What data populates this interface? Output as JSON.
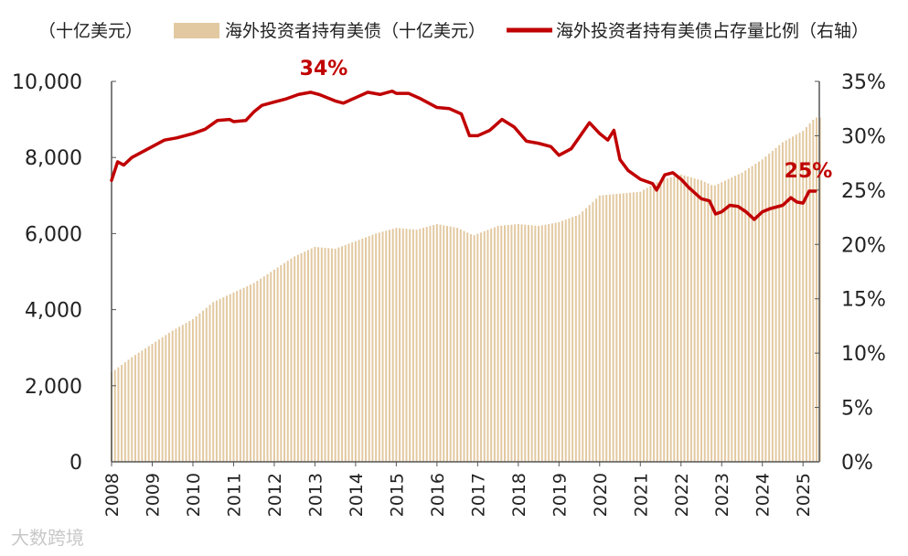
{
  "chart_data": {
    "type": "bar+line",
    "title": "",
    "left_axis_unit": "（十亿美元）",
    "left_ylim": [
      0,
      10000
    ],
    "left_ticks": [
      "0",
      "2,000",
      "4,000",
      "6,000",
      "8,000",
      "10,000"
    ],
    "right_ylim": [
      0,
      35
    ],
    "right_ticks": [
      "0%",
      "5%",
      "10%",
      "15%",
      "20%",
      "25%",
      "30%",
      "35%"
    ],
    "x_range": [
      2008.0,
      2025.4
    ],
    "x_ticks": [
      "2008",
      "2009",
      "2010",
      "2011",
      "2012",
      "2013",
      "2014",
      "2015",
      "2016",
      "2017",
      "2018",
      "2019",
      "2020",
      "2021",
      "2022",
      "2023",
      "2024",
      "2025"
    ],
    "series": [
      {
        "name": "海外投资者持有美债（十亿美元）",
        "type": "bar",
        "axis": "left",
        "color": "#e3c9a1",
        "points": [
          [
            2008.0,
            2350
          ],
          [
            2008.5,
            2750
          ],
          [
            2009.0,
            3100
          ],
          [
            2009.5,
            3450
          ],
          [
            2010.0,
            3750
          ],
          [
            2010.5,
            4200
          ],
          [
            2011.0,
            4450
          ],
          [
            2011.5,
            4700
          ],
          [
            2012.0,
            5050
          ],
          [
            2012.5,
            5400
          ],
          [
            2013.0,
            5650
          ],
          [
            2013.5,
            5600
          ],
          [
            2014.0,
            5800
          ],
          [
            2014.5,
            6000
          ],
          [
            2015.0,
            6150
          ],
          [
            2015.5,
            6100
          ],
          [
            2016.0,
            6250
          ],
          [
            2016.5,
            6150
          ],
          [
            2016.9,
            5950
          ],
          [
            2017.5,
            6200
          ],
          [
            2018.0,
            6250
          ],
          [
            2018.5,
            6200
          ],
          [
            2019.0,
            6300
          ],
          [
            2019.5,
            6500
          ],
          [
            2020.0,
            7000
          ],
          [
            2020.5,
            7050
          ],
          [
            2021.0,
            7100
          ],
          [
            2021.5,
            7400
          ],
          [
            2022.0,
            7550
          ],
          [
            2022.5,
            7400
          ],
          [
            2022.8,
            7250
          ],
          [
            2023.0,
            7350
          ],
          [
            2023.5,
            7600
          ],
          [
            2024.0,
            7950
          ],
          [
            2024.5,
            8400
          ],
          [
            2025.0,
            8700
          ],
          [
            2025.3,
            9050
          ]
        ]
      },
      {
        "name": "海外投资者持有美债占存量比例（右轴）",
        "type": "line",
        "axis": "right",
        "color": "#c00000",
        "points": [
          [
            2008.0,
            25.9
          ],
          [
            2008.15,
            27.6
          ],
          [
            2008.3,
            27.3
          ],
          [
            2008.5,
            28.0
          ],
          [
            2008.8,
            28.6
          ],
          [
            2009.0,
            29.0
          ],
          [
            2009.3,
            29.6
          ],
          [
            2009.6,
            29.8
          ],
          [
            2010.0,
            30.2
          ],
          [
            2010.3,
            30.6
          ],
          [
            2010.6,
            31.4
          ],
          [
            2010.9,
            31.5
          ],
          [
            2011.0,
            31.3
          ],
          [
            2011.3,
            31.4
          ],
          [
            2011.5,
            32.2
          ],
          [
            2011.7,
            32.8
          ],
          [
            2012.0,
            33.1
          ],
          [
            2012.3,
            33.4
          ],
          [
            2012.6,
            33.8
          ],
          [
            2012.9,
            34.0
          ],
          [
            2013.1,
            33.8
          ],
          [
            2013.5,
            33.2
          ],
          [
            2013.7,
            33.0
          ],
          [
            2014.0,
            33.5
          ],
          [
            2014.3,
            34.0
          ],
          [
            2014.6,
            33.8
          ],
          [
            2014.9,
            34.1
          ],
          [
            2015.0,
            33.9
          ],
          [
            2015.3,
            33.9
          ],
          [
            2015.6,
            33.4
          ],
          [
            2016.0,
            32.6
          ],
          [
            2016.3,
            32.5
          ],
          [
            2016.6,
            32.0
          ],
          [
            2016.8,
            30.0
          ],
          [
            2017.0,
            30.0
          ],
          [
            2017.3,
            30.5
          ],
          [
            2017.6,
            31.5
          ],
          [
            2017.9,
            30.8
          ],
          [
            2018.2,
            29.5
          ],
          [
            2018.5,
            29.3
          ],
          [
            2018.8,
            29.0
          ],
          [
            2019.0,
            28.2
          ],
          [
            2019.3,
            28.8
          ],
          [
            2019.6,
            30.4
          ],
          [
            2019.75,
            31.2
          ],
          [
            2020.0,
            30.2
          ],
          [
            2020.2,
            29.6
          ],
          [
            2020.35,
            30.5
          ],
          [
            2020.5,
            27.8
          ],
          [
            2020.7,
            26.8
          ],
          [
            2021.0,
            26.0
          ],
          [
            2021.3,
            25.6
          ],
          [
            2021.4,
            25.0
          ],
          [
            2021.6,
            26.4
          ],
          [
            2021.8,
            26.6
          ],
          [
            2022.0,
            26.0
          ],
          [
            2022.2,
            25.2
          ],
          [
            2022.5,
            24.2
          ],
          [
            2022.7,
            24.0
          ],
          [
            2022.85,
            22.8
          ],
          [
            2023.0,
            23.0
          ],
          [
            2023.2,
            23.6
          ],
          [
            2023.4,
            23.5
          ],
          [
            2023.6,
            23.0
          ],
          [
            2023.8,
            22.3
          ],
          [
            2024.0,
            23.0
          ],
          [
            2024.2,
            23.3
          ],
          [
            2024.5,
            23.6
          ],
          [
            2024.7,
            24.3
          ],
          [
            2024.85,
            23.9
          ],
          [
            2025.0,
            23.8
          ],
          [
            2025.15,
            24.9
          ],
          [
            2025.3,
            24.9
          ]
        ]
      }
    ],
    "annotations": [
      {
        "text": "34%",
        "x": 2013.0,
        "y": 34.0,
        "axis": "right"
      },
      {
        "text": "25%",
        "x": 2025.2,
        "y": 25.0,
        "axis": "right"
      }
    ],
    "legend_position": "top",
    "grid": false
  },
  "watermark": "大数跨境"
}
